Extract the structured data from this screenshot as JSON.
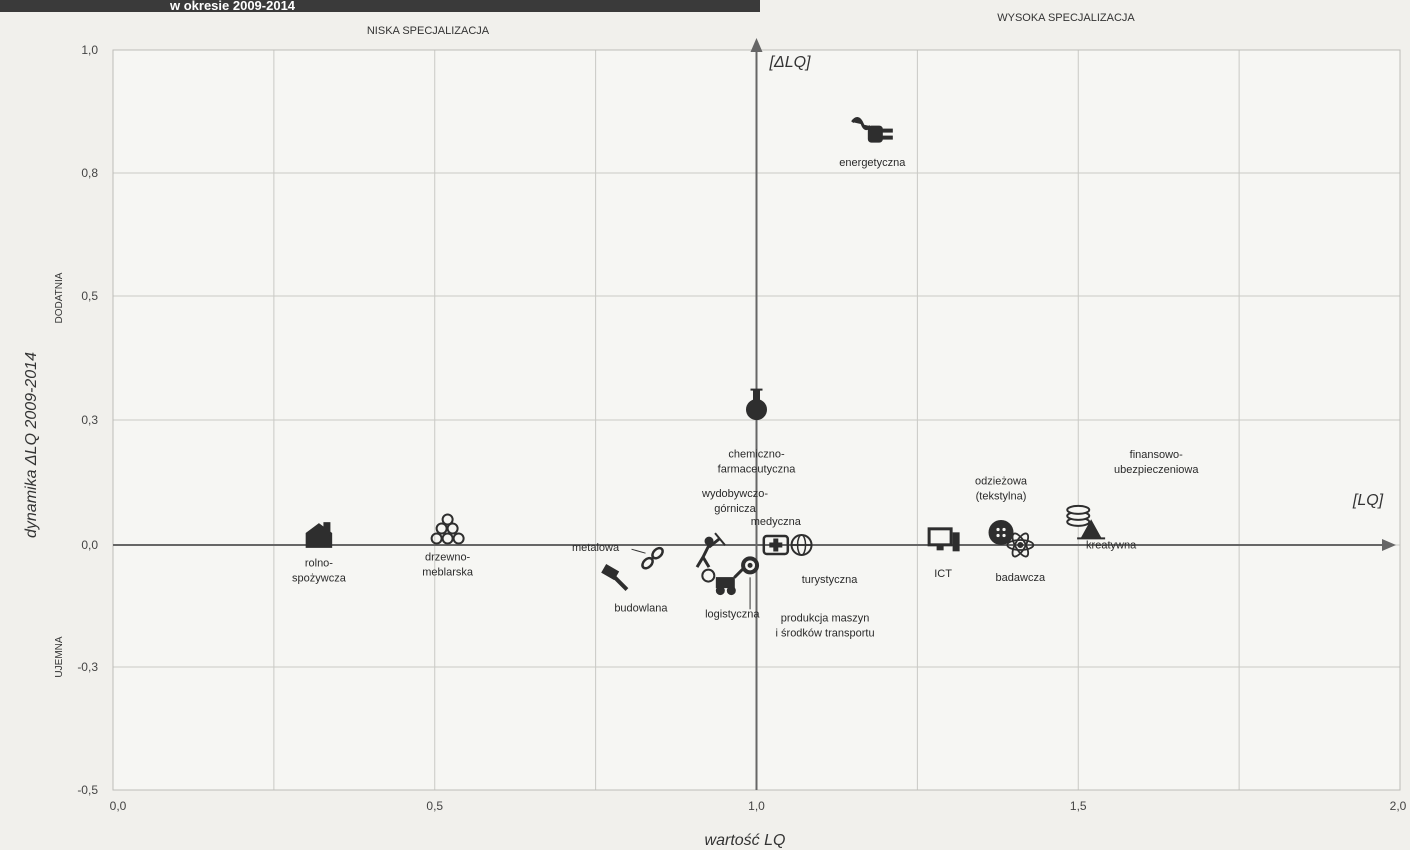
{
  "banner_text": "w okresie 2009-2014",
  "chart_data": {
    "type": "scatter",
    "xlabel": "wartość LQ",
    "ylabel": "dynamika ΔLQ 2009-2014",
    "xlim": [
      0.0,
      2.0
    ],
    "ylim": [
      -0.5,
      1.0
    ],
    "x_ticks": [
      "0,0",
      "0,5",
      "1,0",
      "1,5",
      "2,0"
    ],
    "y_ticks": [
      {
        "v": 1.0,
        "t": "1,0"
      },
      {
        "v": 0.8,
        "t": "0,8"
      },
      {
        "v": 0.5,
        "t": "0,5"
      },
      {
        "v": 0.3,
        "t": "0,3"
      },
      {
        "v": 0.0,
        "t": "0,0"
      },
      {
        "v": -0.3,
        "t": "-0,3"
      },
      {
        "v": -0.5,
        "t": "-0,5"
      }
    ],
    "quadrant_labels": {
      "low": "NISKA SPECJALIZACJA",
      "high": "WYSOKA SPECJALIZACJA"
    },
    "side_labels": {
      "positive": "DODATNIA",
      "negative": "UJEMNA"
    },
    "axis_names": {
      "x": "[LQ]",
      "y": "[ΔLQ]"
    },
    "points": [
      {
        "name": "energetyczna",
        "x": 1.18,
        "y": 0.86,
        "icon": "plug-icon"
      },
      {
        "name": "chemiczno-\nfarmaceutyczna",
        "x": 1.0,
        "y": 0.32,
        "icon": "flask-icon"
      },
      {
        "name": "rolno-\nspożywcza",
        "x": 0.32,
        "y": 0.02,
        "icon": "barn-icon"
      },
      {
        "name": "drzewno-\nmeblarska",
        "x": 0.52,
        "y": 0.03,
        "icon": "logs-icon"
      },
      {
        "name": "wydobywczo-\ngórnicza",
        "x": 0.92,
        "y": -0.02,
        "icon": "miner-icon"
      },
      {
        "name": "metalowa",
        "x": 0.84,
        "y": -0.03,
        "icon": "chain-icon"
      },
      {
        "name": "budowlana",
        "x": 0.78,
        "y": -0.08,
        "icon": "hammer-icon"
      },
      {
        "name": "medyczna",
        "x": 1.03,
        "y": 0.0,
        "icon": "first-aid-icon"
      },
      {
        "name": "turystyczna",
        "x": 1.07,
        "y": 0.0,
        "icon": "globe-icon"
      },
      {
        "name": "logistyczna",
        "x": 0.95,
        "y": -0.09,
        "icon": "forklift-icon"
      },
      {
        "name": "produkcja maszyn\ni środków transportu",
        "x": 0.99,
        "y": -0.05,
        "icon": "gear-icon"
      },
      {
        "name": "ICT",
        "x": 1.29,
        "y": 0.01,
        "icon": "computer-icon"
      },
      {
        "name": "odzieżowa\n(tekstylna)",
        "x": 1.38,
        "y": 0.03,
        "icon": "button-icon"
      },
      {
        "name": "badawcza",
        "x": 1.41,
        "y": 0.0,
        "icon": "atom-icon"
      },
      {
        "name": "finansowo-\nubezpieczeniowa",
        "x": 1.5,
        "y": 0.07,
        "icon": "coins-icon"
      },
      {
        "name": "kreatywna",
        "x": 1.52,
        "y": 0.04,
        "icon": "easel-icon"
      }
    ]
  }
}
